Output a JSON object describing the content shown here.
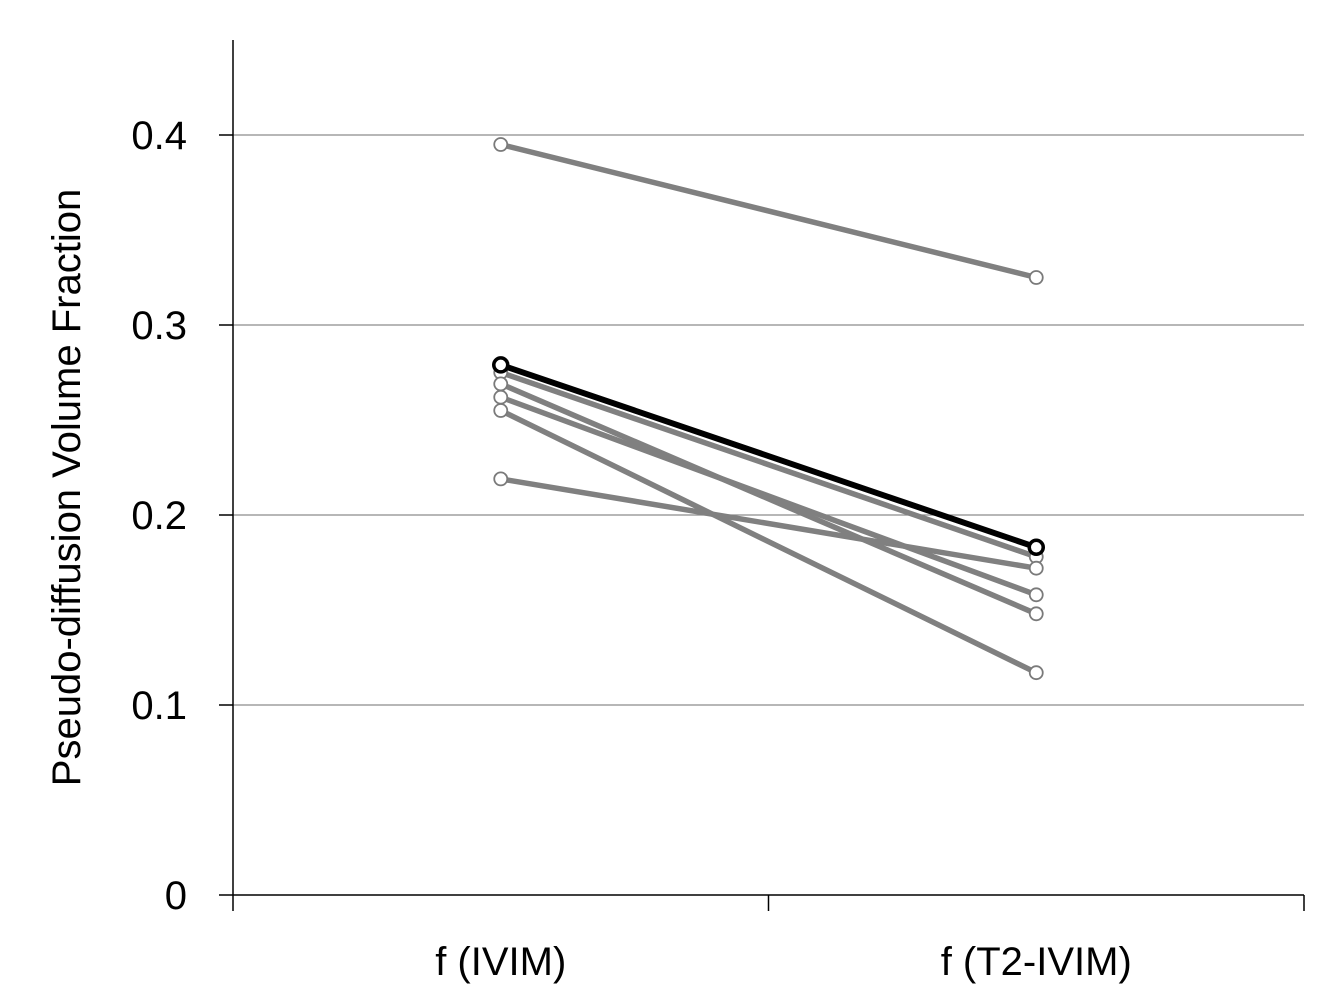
{
  "chart_data": {
    "type": "line",
    "title": "",
    "xlabel": "",
    "ylabel": "Pseudo-diffusion Volume Fraction",
    "categories": [
      "f (IVIM)",
      "f (T2-IVIM)"
    ],
    "ylim": [
      0,
      0.45
    ],
    "yticks": [
      0,
      0.1,
      0.2,
      0.3,
      0.4
    ],
    "ytick_labels": [
      "0",
      "0.1",
      "0.2",
      "0.3",
      "0.4"
    ],
    "grid": true,
    "legend": "none",
    "series": [
      {
        "values": [
          0.395,
          0.325
        ],
        "color": "#808080",
        "highlight": false
      },
      {
        "values": [
          0.275,
          0.178
        ],
        "color": "#808080",
        "highlight": false
      },
      {
        "values": [
          0.269,
          0.148
        ],
        "color": "#808080",
        "highlight": false
      },
      {
        "values": [
          0.262,
          0.158
        ],
        "color": "#808080",
        "highlight": false
      },
      {
        "values": [
          0.255,
          0.117
        ],
        "color": "#808080",
        "highlight": false
      },
      {
        "values": [
          0.219,
          0.172
        ],
        "color": "#808080",
        "highlight": false
      },
      {
        "values": [
          0.279,
          0.183
        ],
        "color": "#000000",
        "highlight": true
      }
    ]
  }
}
